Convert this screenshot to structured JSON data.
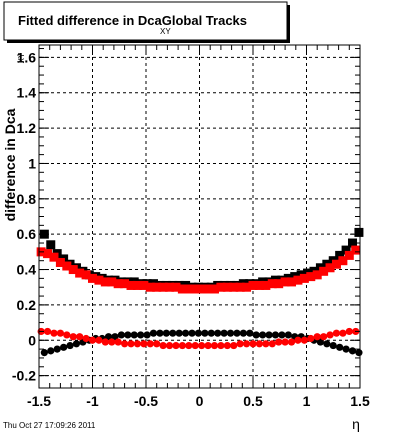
{
  "chart_data": {
    "type": "scatter",
    "title": "Fitted difference in Dca",
    "title_subscript": "XY",
    "title_suffix": "Global Tracks",
    "ylabel": "difference in Dca",
    "ylabel_subscript": "XY",
    "xlabel": "η",
    "xlim": [
      -1.5,
      1.5
    ],
    "ylim": [
      -0.27,
      1.67
    ],
    "x_ticks": [
      -1.5,
      -1,
      -0.5,
      0,
      0.5,
      1,
      1.5
    ],
    "x_tick_labels": [
      "-1.5",
      "-1",
      "-0.5",
      "0",
      "0.5",
      "1",
      "1.5"
    ],
    "y_ticks": [
      -0.2,
      0,
      0.2,
      0.4,
      0.6,
      0.8,
      1,
      1.2,
      1.4,
      1.6
    ],
    "y_tick_labels": [
      "-0.2",
      "0",
      "0.2",
      "0.4",
      "0.6",
      "0.8",
      "1",
      "1.2",
      "1.4",
      "1.6"
    ],
    "grid": true,
    "timestamp": "Thu Oct 27 17:09:26 2011",
    "series": [
      {
        "color": "#000000",
        "marker": "square",
        "x": [
          -1.45,
          -1.39,
          -1.33,
          -1.27,
          -1.21,
          -1.15,
          -1.09,
          -1.03,
          -0.97,
          -0.91,
          -0.85,
          -0.79,
          -0.73,
          -0.67,
          -0.61,
          -0.55,
          -0.49,
          -0.43,
          -0.37,
          -0.31,
          -0.25,
          -0.19,
          -0.13,
          -0.07,
          -0.01,
          0.05,
          0.11,
          0.17,
          0.23,
          0.29,
          0.35,
          0.41,
          0.47,
          0.53,
          0.59,
          0.65,
          0.71,
          0.77,
          0.83,
          0.89,
          0.95,
          1.01,
          1.07,
          1.13,
          1.19,
          1.25,
          1.31,
          1.37,
          1.43,
          1.49
        ],
        "y": [
          0.6,
          0.54,
          0.49,
          0.46,
          0.43,
          0.41,
          0.39,
          0.37,
          0.36,
          0.35,
          0.34,
          0.34,
          0.33,
          0.33,
          0.33,
          0.32,
          0.32,
          0.32,
          0.31,
          0.31,
          0.31,
          0.31,
          0.31,
          0.3,
          0.3,
          0.3,
          0.3,
          0.31,
          0.31,
          0.31,
          0.31,
          0.32,
          0.32,
          0.32,
          0.33,
          0.33,
          0.34,
          0.34,
          0.35,
          0.36,
          0.37,
          0.38,
          0.39,
          0.41,
          0.43,
          0.45,
          0.48,
          0.51,
          0.55,
          0.61
        ]
      },
      {
        "color": "#ff0000",
        "marker": "square",
        "x": [
          -1.48,
          -1.42,
          -1.36,
          -1.3,
          -1.24,
          -1.18,
          -1.12,
          -1.06,
          -1.0,
          -0.94,
          -0.88,
          -0.82,
          -0.76,
          -0.7,
          -0.64,
          -0.58,
          -0.52,
          -0.46,
          -0.4,
          -0.34,
          -0.28,
          -0.22,
          -0.16,
          -0.1,
          -0.04,
          0.02,
          0.08,
          0.14,
          0.2,
          0.26,
          0.32,
          0.38,
          0.44,
          0.5,
          0.56,
          0.62,
          0.68,
          0.74,
          0.8,
          0.86,
          0.92,
          0.98,
          1.04,
          1.1,
          1.16,
          1.22,
          1.28,
          1.34,
          1.4,
          1.46
        ],
        "y": [
          0.5,
          0.49,
          0.47,
          0.44,
          0.42,
          0.4,
          0.38,
          0.37,
          0.35,
          0.34,
          0.33,
          0.33,
          0.32,
          0.32,
          0.31,
          0.31,
          0.31,
          0.3,
          0.3,
          0.3,
          0.3,
          0.3,
          0.29,
          0.29,
          0.29,
          0.29,
          0.29,
          0.29,
          0.3,
          0.3,
          0.3,
          0.3,
          0.3,
          0.31,
          0.31,
          0.31,
          0.32,
          0.32,
          0.33,
          0.33,
          0.34,
          0.35,
          0.36,
          0.37,
          0.39,
          0.41,
          0.43,
          0.45,
          0.48,
          0.51
        ]
      },
      {
        "color": "#000000",
        "marker": "circle",
        "x": [
          -1.45,
          -1.39,
          -1.33,
          -1.27,
          -1.21,
          -1.15,
          -1.09,
          -1.03,
          -0.97,
          -0.91,
          -0.85,
          -0.79,
          -0.73,
          -0.67,
          -0.61,
          -0.55,
          -0.49,
          -0.43,
          -0.37,
          -0.31,
          -0.25,
          -0.19,
          -0.13,
          -0.07,
          -0.01,
          0.05,
          0.11,
          0.17,
          0.23,
          0.29,
          0.35,
          0.41,
          0.47,
          0.53,
          0.59,
          0.65,
          0.71,
          0.77,
          0.83,
          0.89,
          0.95,
          1.01,
          1.07,
          1.13,
          1.19,
          1.25,
          1.31,
          1.37,
          1.43,
          1.49
        ],
        "y": [
          -0.07,
          -0.06,
          -0.05,
          -0.04,
          -0.03,
          -0.02,
          -0.01,
          0.0,
          0.01,
          0.01,
          0.02,
          0.02,
          0.03,
          0.03,
          0.03,
          0.03,
          0.03,
          0.04,
          0.04,
          0.04,
          0.04,
          0.04,
          0.04,
          0.04,
          0.04,
          0.04,
          0.04,
          0.04,
          0.04,
          0.04,
          0.04,
          0.04,
          0.04,
          0.03,
          0.03,
          0.03,
          0.03,
          0.03,
          0.03,
          0.02,
          0.02,
          0.01,
          0.0,
          -0.01,
          -0.02,
          -0.03,
          -0.04,
          -0.05,
          -0.06,
          -0.07
        ]
      },
      {
        "color": "#ff0000",
        "marker": "circle",
        "x": [
          -1.48,
          -1.42,
          -1.36,
          -1.3,
          -1.24,
          -1.18,
          -1.12,
          -1.06,
          -1.0,
          -0.94,
          -0.88,
          -0.82,
          -0.76,
          -0.7,
          -0.64,
          -0.58,
          -0.52,
          -0.46,
          -0.4,
          -0.34,
          -0.28,
          -0.22,
          -0.16,
          -0.1,
          -0.04,
          0.02,
          0.08,
          0.14,
          0.2,
          0.26,
          0.32,
          0.38,
          0.44,
          0.5,
          0.56,
          0.62,
          0.68,
          0.74,
          0.8,
          0.86,
          0.92,
          0.98,
          1.04,
          1.1,
          1.16,
          1.22,
          1.28,
          1.34,
          1.4,
          1.46
        ],
        "y": [
          0.05,
          0.05,
          0.04,
          0.04,
          0.03,
          0.02,
          0.02,
          0.01,
          0.0,
          0.0,
          -0.01,
          -0.01,
          -0.01,
          -0.02,
          -0.02,
          -0.02,
          -0.02,
          -0.02,
          -0.02,
          -0.03,
          -0.03,
          -0.03,
          -0.03,
          -0.03,
          -0.03,
          -0.03,
          -0.03,
          -0.03,
          -0.03,
          -0.03,
          -0.03,
          -0.02,
          -0.02,
          -0.02,
          -0.02,
          -0.02,
          -0.02,
          -0.01,
          -0.01,
          -0.01,
          0.0,
          0.0,
          0.01,
          0.02,
          0.02,
          0.03,
          0.04,
          0.04,
          0.05,
          0.05
        ]
      }
    ]
  }
}
